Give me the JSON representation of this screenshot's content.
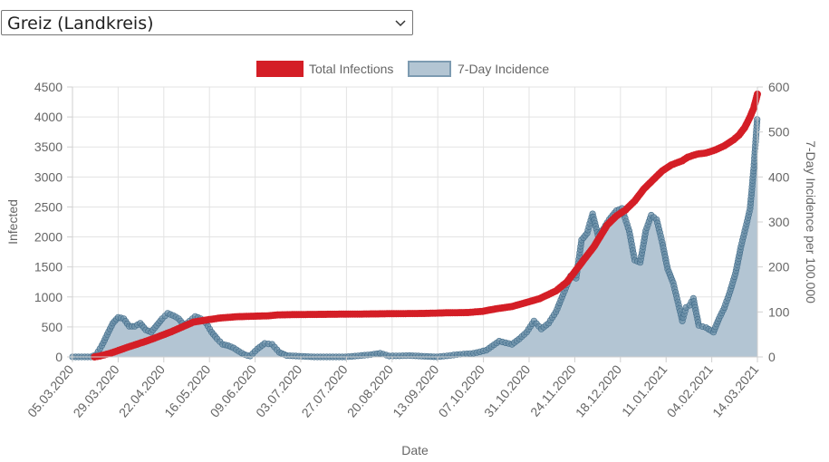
{
  "region_select": {
    "value": "Greiz (Landkreis)",
    "arrow_icon": "chevron-down-icon"
  },
  "chart_data": {
    "type": "line",
    "x_label": "Date",
    "y_label_left": "Infected",
    "y_label_right": "7-Day Incidence per 100.000",
    "y_left_range": [
      0,
      4500
    ],
    "y_left_ticks": [
      "0",
      "500",
      "1000",
      "1500",
      "2000",
      "2500",
      "3000",
      "3500",
      "4000",
      "4500"
    ],
    "y_right_range": [
      0,
      600
    ],
    "y_right_ticks": [
      "0",
      "100",
      "200",
      "300",
      "400",
      "500",
      "600"
    ],
    "x_range": [
      "2020-03-05",
      "2021-03-14"
    ],
    "x_ticks": [
      "05.03.2020",
      "29.03.2020",
      "22.04.2020",
      "16.05.2020",
      "09.06.2020",
      "03.07.2020",
      "27.07.2020",
      "20.08.2020",
      "13.09.2020",
      "07.10.2020",
      "31.10.2020",
      "24.11.2020",
      "18.12.2020",
      "11.01.2021",
      "04.02.2021",
      "14.03.2021"
    ],
    "grid": true,
    "legend_position": "top",
    "series": [
      {
        "name": "Total Infections",
        "axis": "left",
        "color": "#d41e26",
        "style": "line-with-points",
        "points": [
          [
            "2020-03-17",
            0
          ],
          [
            "2020-03-20",
            15
          ],
          [
            "2020-03-25",
            55
          ],
          [
            "2020-03-29",
            95
          ],
          [
            "2020-04-03",
            150
          ],
          [
            "2020-04-08",
            200
          ],
          [
            "2020-04-15",
            270
          ],
          [
            "2020-04-22",
            350
          ],
          [
            "2020-04-28",
            420
          ],
          [
            "2020-05-04",
            500
          ],
          [
            "2020-05-10",
            580
          ],
          [
            "2020-05-16",
            610
          ],
          [
            "2020-05-25",
            650
          ],
          [
            "2020-06-03",
            670
          ],
          [
            "2020-06-13",
            680
          ],
          [
            "2020-06-20",
            685
          ],
          [
            "2020-06-25",
            700
          ],
          [
            "2020-07-03",
            705
          ],
          [
            "2020-07-20",
            710
          ],
          [
            "2020-08-10",
            715
          ],
          [
            "2020-08-25",
            720
          ],
          [
            "2020-09-13",
            725
          ],
          [
            "2020-09-25",
            735
          ],
          [
            "2020-10-07",
            740
          ],
          [
            "2020-10-15",
            760
          ],
          [
            "2020-10-22",
            800
          ],
          [
            "2020-10-31",
            840
          ],
          [
            "2020-11-07",
            900
          ],
          [
            "2020-11-15",
            970
          ],
          [
            "2020-11-24",
            1100
          ],
          [
            "2020-11-30",
            1250
          ],
          [
            "2020-12-05",
            1450
          ],
          [
            "2020-12-10",
            1650
          ],
          [
            "2020-12-15",
            1850
          ],
          [
            "2020-12-18",
            2000
          ],
          [
            "2020-12-22",
            2200
          ],
          [
            "2020-12-27",
            2350
          ],
          [
            "2021-01-01",
            2450
          ],
          [
            "2021-01-06",
            2600
          ],
          [
            "2021-01-11",
            2800
          ],
          [
            "2021-01-16",
            2950
          ],
          [
            "2021-01-21",
            3100
          ],
          [
            "2021-01-26",
            3200
          ],
          [
            "2021-02-01",
            3270
          ],
          [
            "2021-02-04",
            3330
          ],
          [
            "2021-02-09",
            3380
          ],
          [
            "2021-02-14",
            3400
          ],
          [
            "2021-02-19",
            3450
          ],
          [
            "2021-02-24",
            3520
          ],
          [
            "2021-03-01",
            3620
          ],
          [
            "2021-03-04",
            3700
          ],
          [
            "2021-03-07",
            3820
          ],
          [
            "2021-03-10",
            4000
          ],
          [
            "2021-03-12",
            4150
          ],
          [
            "2021-03-14",
            4380
          ]
        ]
      },
      {
        "name": "7-Day Incidence",
        "axis": "right",
        "color": "#5a7f99",
        "fill": "#b3c5d3",
        "style": "area-with-points",
        "points": [
          [
            "2020-03-05",
            0
          ],
          [
            "2020-03-15",
            0
          ],
          [
            "2020-03-18",
            5
          ],
          [
            "2020-03-21",
            25
          ],
          [
            "2020-03-24",
            50
          ],
          [
            "2020-03-27",
            75
          ],
          [
            "2020-03-30",
            88
          ],
          [
            "2020-04-02",
            85
          ],
          [
            "2020-04-05",
            68
          ],
          [
            "2020-04-08",
            68
          ],
          [
            "2020-04-11",
            75
          ],
          [
            "2020-04-14",
            60
          ],
          [
            "2020-04-17",
            55
          ],
          [
            "2020-04-20",
            70
          ],
          [
            "2020-04-23",
            85
          ],
          [
            "2020-04-26",
            97
          ],
          [
            "2020-04-29",
            92
          ],
          [
            "2020-05-02",
            85
          ],
          [
            "2020-05-05",
            70
          ],
          [
            "2020-05-08",
            80
          ],
          [
            "2020-05-11",
            90
          ],
          [
            "2020-05-14",
            85
          ],
          [
            "2020-05-17",
            75
          ],
          [
            "2020-05-20",
            55
          ],
          [
            "2020-05-23",
            40
          ],
          [
            "2020-05-26",
            28
          ],
          [
            "2020-05-29",
            25
          ],
          [
            "2020-06-01",
            20
          ],
          [
            "2020-06-04",
            12
          ],
          [
            "2020-06-07",
            5
          ],
          [
            "2020-06-10",
            2
          ],
          [
            "2020-06-14",
            18
          ],
          [
            "2020-06-18",
            30
          ],
          [
            "2020-06-22",
            28
          ],
          [
            "2020-06-26",
            10
          ],
          [
            "2020-06-30",
            3
          ],
          [
            "2020-07-05",
            2
          ],
          [
            "2020-07-15",
            0
          ],
          [
            "2020-08-01",
            0
          ],
          [
            "2020-08-15",
            5
          ],
          [
            "2020-08-20",
            8
          ],
          [
            "2020-08-25",
            2
          ],
          [
            "2020-09-05",
            3
          ],
          [
            "2020-09-20",
            0
          ],
          [
            "2020-10-01",
            5
          ],
          [
            "2020-10-10",
            8
          ],
          [
            "2020-10-17",
            15
          ],
          [
            "2020-10-24",
            35
          ],
          [
            "2020-10-31",
            28
          ],
          [
            "2020-11-04",
            40
          ],
          [
            "2020-11-08",
            55
          ],
          [
            "2020-11-12",
            80
          ],
          [
            "2020-11-16",
            62
          ],
          [
            "2020-11-20",
            75
          ],
          [
            "2020-11-24",
            100
          ],
          [
            "2020-11-28",
            140
          ],
          [
            "2020-12-02",
            180
          ],
          [
            "2020-12-05",
            175
          ],
          [
            "2020-12-08",
            260
          ],
          [
            "2020-12-11",
            275
          ],
          [
            "2020-12-14",
            318
          ],
          [
            "2020-12-17",
            270
          ],
          [
            "2020-12-20",
            285
          ],
          [
            "2020-12-23",
            305
          ],
          [
            "2020-12-27",
            325
          ],
          [
            "2020-12-30",
            330
          ],
          [
            "2021-01-03",
            280
          ],
          [
            "2021-01-06",
            215
          ],
          [
            "2021-01-09",
            210
          ],
          [
            "2021-01-12",
            280
          ],
          [
            "2021-01-15",
            315
          ],
          [
            "2021-01-18",
            305
          ],
          [
            "2021-01-21",
            255
          ],
          [
            "2021-01-24",
            195
          ],
          [
            "2021-01-27",
            165
          ],
          [
            "2021-01-30",
            115
          ],
          [
            "2021-02-01",
            80
          ],
          [
            "2021-02-03",
            110
          ],
          [
            "2021-02-05",
            115
          ],
          [
            "2021-02-07",
            130
          ],
          [
            "2021-02-10",
            70
          ],
          [
            "2021-02-14",
            65
          ],
          [
            "2021-02-18",
            55
          ],
          [
            "2021-02-21",
            85
          ],
          [
            "2021-02-24",
            110
          ],
          [
            "2021-02-27",
            145
          ],
          [
            "2021-03-02",
            185
          ],
          [
            "2021-03-05",
            245
          ],
          [
            "2021-03-08",
            295
          ],
          [
            "2021-03-10",
            330
          ],
          [
            "2021-03-12",
            420
          ],
          [
            "2021-03-14",
            535
          ]
        ]
      }
    ]
  }
}
